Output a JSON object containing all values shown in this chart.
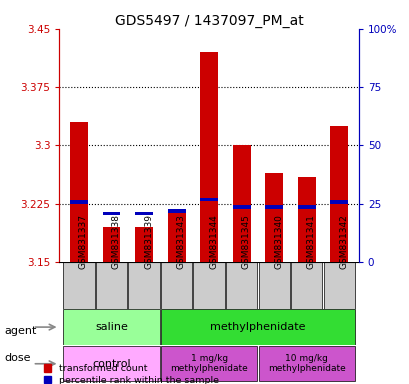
{
  "title": "GDS5497 / 1437097_PM_at",
  "samples": [
    "GSM831337",
    "GSM831338",
    "GSM831339",
    "GSM831343",
    "GSM831344",
    "GSM831345",
    "GSM831340",
    "GSM831341",
    "GSM831342"
  ],
  "red_values": [
    3.33,
    3.195,
    3.195,
    3.215,
    3.42,
    3.3,
    3.265,
    3.26,
    3.325
  ],
  "blue_values": [
    3.225,
    3.21,
    3.21,
    3.213,
    3.228,
    3.218,
    3.218,
    3.218,
    3.225
  ],
  "blue_heights": [
    0.005,
    0.005,
    0.005,
    0.005,
    0.005,
    0.005,
    0.005,
    0.005,
    0.005
  ],
  "y_min": 3.15,
  "y_max": 3.45,
  "y_ticks": [
    3.15,
    3.225,
    3.3,
    3.375,
    3.45
  ],
  "y_right_ticks": [
    0,
    25,
    50,
    75,
    100
  ],
  "dotted_lines": [
    3.225,
    3.3,
    3.375
  ],
  "saline_color": "#99FF99",
  "methyl_color": "#33DD33",
  "control_color": "#FFAAFF",
  "dose1_color": "#CC55CC",
  "dose2_color": "#CC55CC",
  "bar_width": 0.55,
  "red_color": "#CC0000",
  "blue_color": "#0000BB",
  "title_fontsize": 10,
  "tick_fontsize": 7.5,
  "label_fontsize": 8
}
